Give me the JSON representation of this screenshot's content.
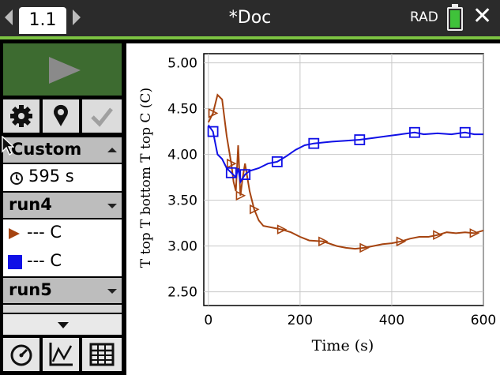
{
  "header": {
    "tab_label": "1.1",
    "document_title": "*Doc",
    "angle_mode": "RAD",
    "battery_icon": "battery-full-icon"
  },
  "sidebar": {
    "mode_label": "Custom",
    "time_value": "595 s",
    "runs": [
      {
        "label": "run4"
      },
      {
        "label": "run5"
      }
    ],
    "series": [
      {
        "legend_text": "--- C",
        "color": "#a64410",
        "marker": "triangle"
      },
      {
        "legend_text": "--- C",
        "color": "#1010e6",
        "marker": "square"
      }
    ]
  },
  "chart_data": {
    "type": "line",
    "ylabel": "T top T bottom T top C (C)",
    "xlabel": "Time (s)",
    "xlim": [
      -10,
      600
    ],
    "ylim": [
      2.35,
      5.1
    ],
    "x_ticks": [
      "0",
      "200",
      "400",
      "600"
    ],
    "y_ticks": [
      "2.50",
      "3.00",
      "3.50",
      "4.00",
      "4.50",
      "5.00"
    ],
    "grid": true,
    "series": [
      {
        "color": "#a64410",
        "marker": "triangle",
        "x": [
          0,
          10,
          20,
          30,
          40,
          50,
          55,
          60,
          65,
          70,
          75,
          80,
          90,
          100,
          110,
          120,
          140,
          160,
          180,
          200,
          220,
          250,
          280,
          300,
          320,
          340,
          360,
          380,
          400,
          420,
          440,
          460,
          480,
          500,
          520,
          540,
          560,
          580,
          600
        ],
        "y": [
          4.35,
          4.45,
          4.65,
          4.6,
          4.2,
          3.9,
          3.7,
          3.6,
          4.1,
          3.55,
          3.75,
          3.9,
          3.6,
          3.4,
          3.28,
          3.22,
          3.2,
          3.18,
          3.15,
          3.1,
          3.06,
          3.05,
          3.0,
          2.98,
          2.97,
          2.98,
          3.0,
          3.02,
          3.03,
          3.05,
          3.08,
          3.1,
          3.1,
          3.12,
          3.15,
          3.14,
          3.15,
          3.14,
          3.17
        ]
      },
      {
        "color": "#1010e6",
        "marker": "square",
        "x": [
          0,
          10,
          20,
          30,
          40,
          50,
          60,
          65,
          70,
          80,
          90,
          110,
          130,
          150,
          170,
          190,
          210,
          230,
          250,
          270,
          300,
          330,
          360,
          390,
          420,
          450,
          470,
          500,
          530,
          560,
          580,
          600
        ],
        "y": [
          4.32,
          4.25,
          4.0,
          3.95,
          3.85,
          3.8,
          3.75,
          3.85,
          3.7,
          3.78,
          3.82,
          3.85,
          3.9,
          3.92,
          3.98,
          4.05,
          4.1,
          4.12,
          4.13,
          4.14,
          4.15,
          4.16,
          4.18,
          4.2,
          4.22,
          4.24,
          4.22,
          4.23,
          4.22,
          4.24,
          4.22,
          4.22
        ]
      }
    ]
  }
}
